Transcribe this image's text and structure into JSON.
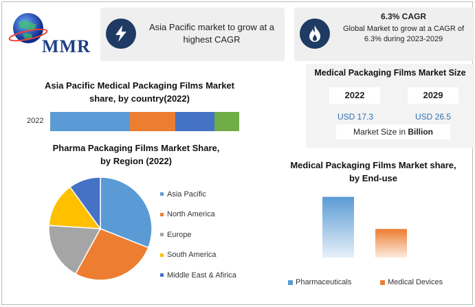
{
  "logo": {
    "text": "MMR"
  },
  "callout1": {
    "icon": "lightning-icon",
    "text": "Asia Pacific market to grow at a highest CAGR"
  },
  "callout2": {
    "icon": "flame-icon",
    "heading": "6.3% CAGR",
    "text": "Global Market to grow at a CAGR of 6.3% during 2023-2029"
  },
  "market_size": {
    "title": "Medical Packaging Films Market Size",
    "year1": "2022",
    "year2": "2029",
    "value1": "USD 17.3",
    "value2": "USD 26.5",
    "unit_prefix": "Market Size in ",
    "unit_bold": "Billion"
  },
  "colors": {
    "blue_light": "#5b9bd5",
    "orange": "#ed7d31",
    "gray": "#a5a5a5",
    "yellow": "#ffc000",
    "dark_blue": "#4472c4",
    "green": "#70ad47"
  },
  "chart_data": [
    {
      "type": "bar",
      "orientation": "horizontal-stacked",
      "title": "Asia Pacific Medical Packaging Films Market share, by country(2022)",
      "categories": [
        "2022"
      ],
      "series": [
        {
          "values": [
            42
          ],
          "color": "#5b9bd5"
        },
        {
          "values": [
            24
          ],
          "color": "#ed7d31"
        },
        {
          "values": [
            21
          ],
          "color": "#4472c4"
        },
        {
          "values": [
            13
          ],
          "color": "#70ad47"
        }
      ]
    },
    {
      "type": "pie",
      "title": "Pharma Packaging Films Market Share, by Region (2022)",
      "labels": [
        "Asia Pacific",
        "North America",
        "Europe",
        "South America",
        "Middle East & Afirica"
      ],
      "values": [
        31,
        27,
        18,
        14,
        10
      ],
      "colors": [
        "#5b9bd5",
        "#ed7d31",
        "#a5a5a5",
        "#ffc000",
        "#4472c4"
      ],
      "legend": "right"
    },
    {
      "type": "bar",
      "title": "Medical Packaging Films Market share, by End-use",
      "categories": [
        "Pharmaceuticals",
        "Medical Devices"
      ],
      "values": [
        68,
        32
      ],
      "colors": [
        "#5b9bd5",
        "#ed7d31"
      ],
      "ylim": [
        0,
        100
      ],
      "legend": "bottom"
    }
  ]
}
